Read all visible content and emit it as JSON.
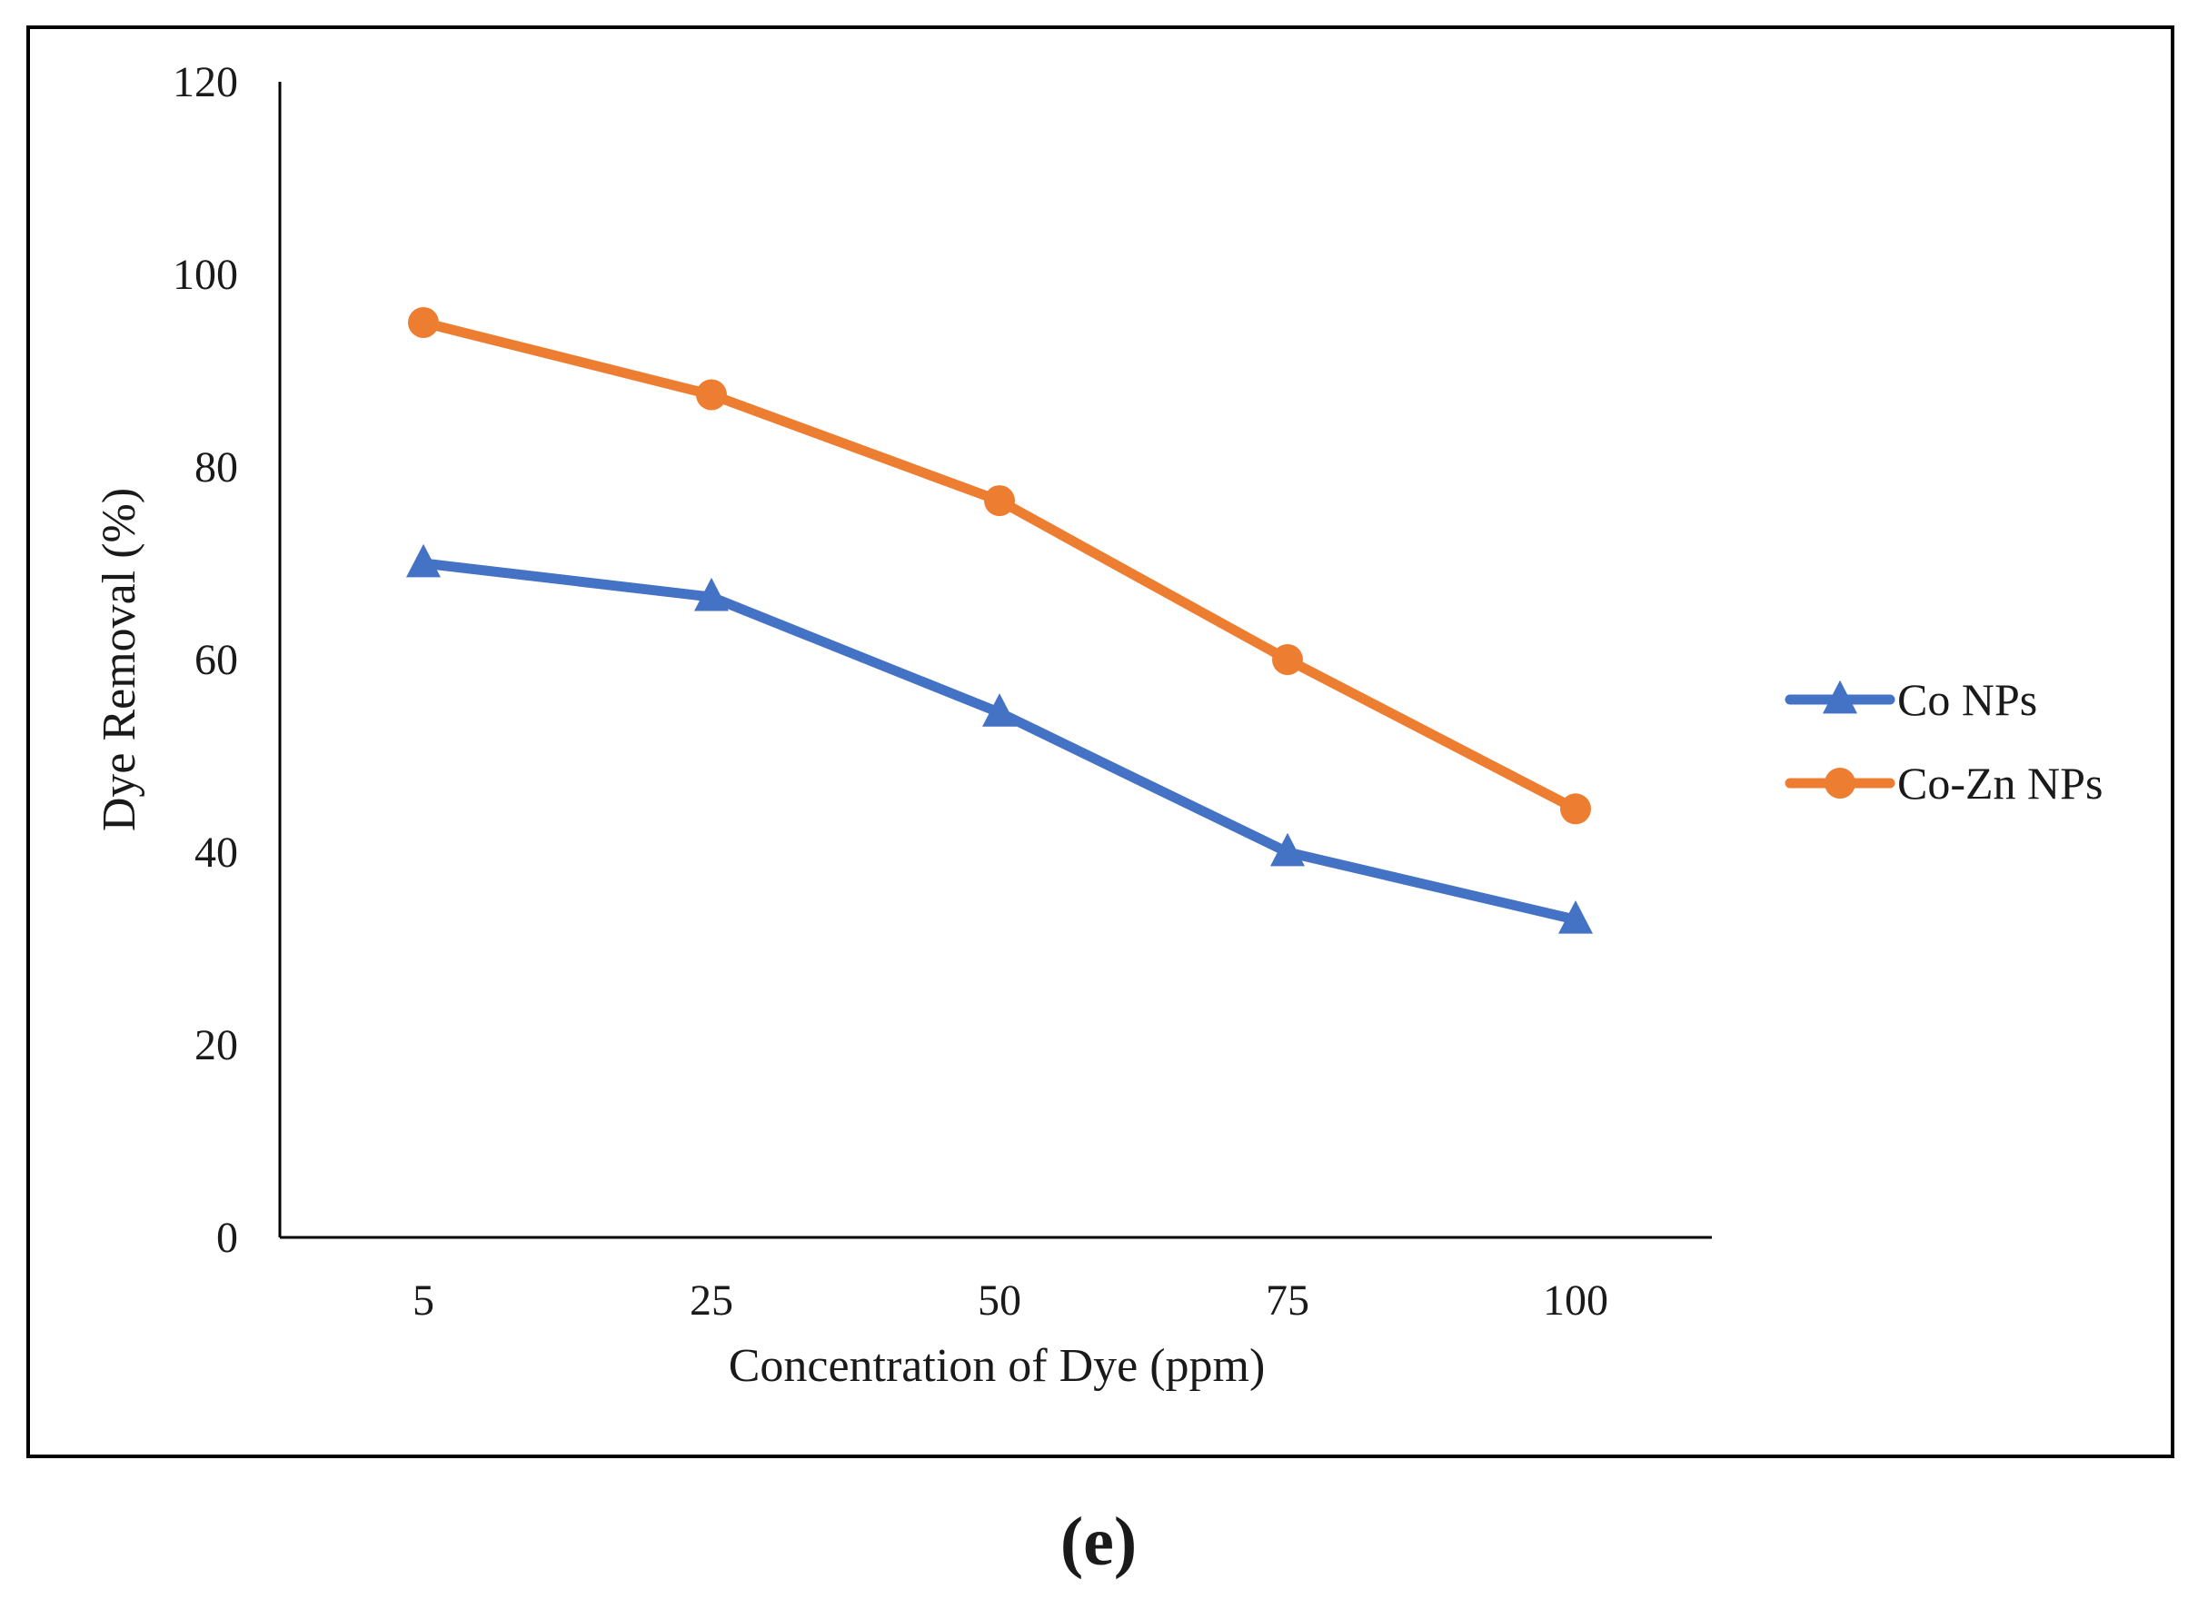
{
  "chart_data": {
    "type": "line",
    "title": "",
    "xlabel": "Concentration of Dye (ppm)",
    "ylabel": "Dye Removal (%)",
    "categories": [
      "5",
      "25",
      "50",
      "75",
      "100"
    ],
    "ylim": [
      0,
      120
    ],
    "yticks": [
      0,
      20,
      40,
      60,
      80,
      100,
      120
    ],
    "grid": false,
    "legend_position": "right",
    "series": [
      {
        "name": "Co NPs",
        "values": [
          70,
          66.5,
          54.5,
          40,
          33
        ],
        "color": "#4472C4",
        "marker": "triangle"
      },
      {
        "name": "Co-Zn NPs",
        "values": [
          95,
          87.5,
          76.5,
          60,
          44.5
        ],
        "color": "#ED7D31",
        "marker": "circle"
      }
    ]
  },
  "panel_label": "(e)"
}
